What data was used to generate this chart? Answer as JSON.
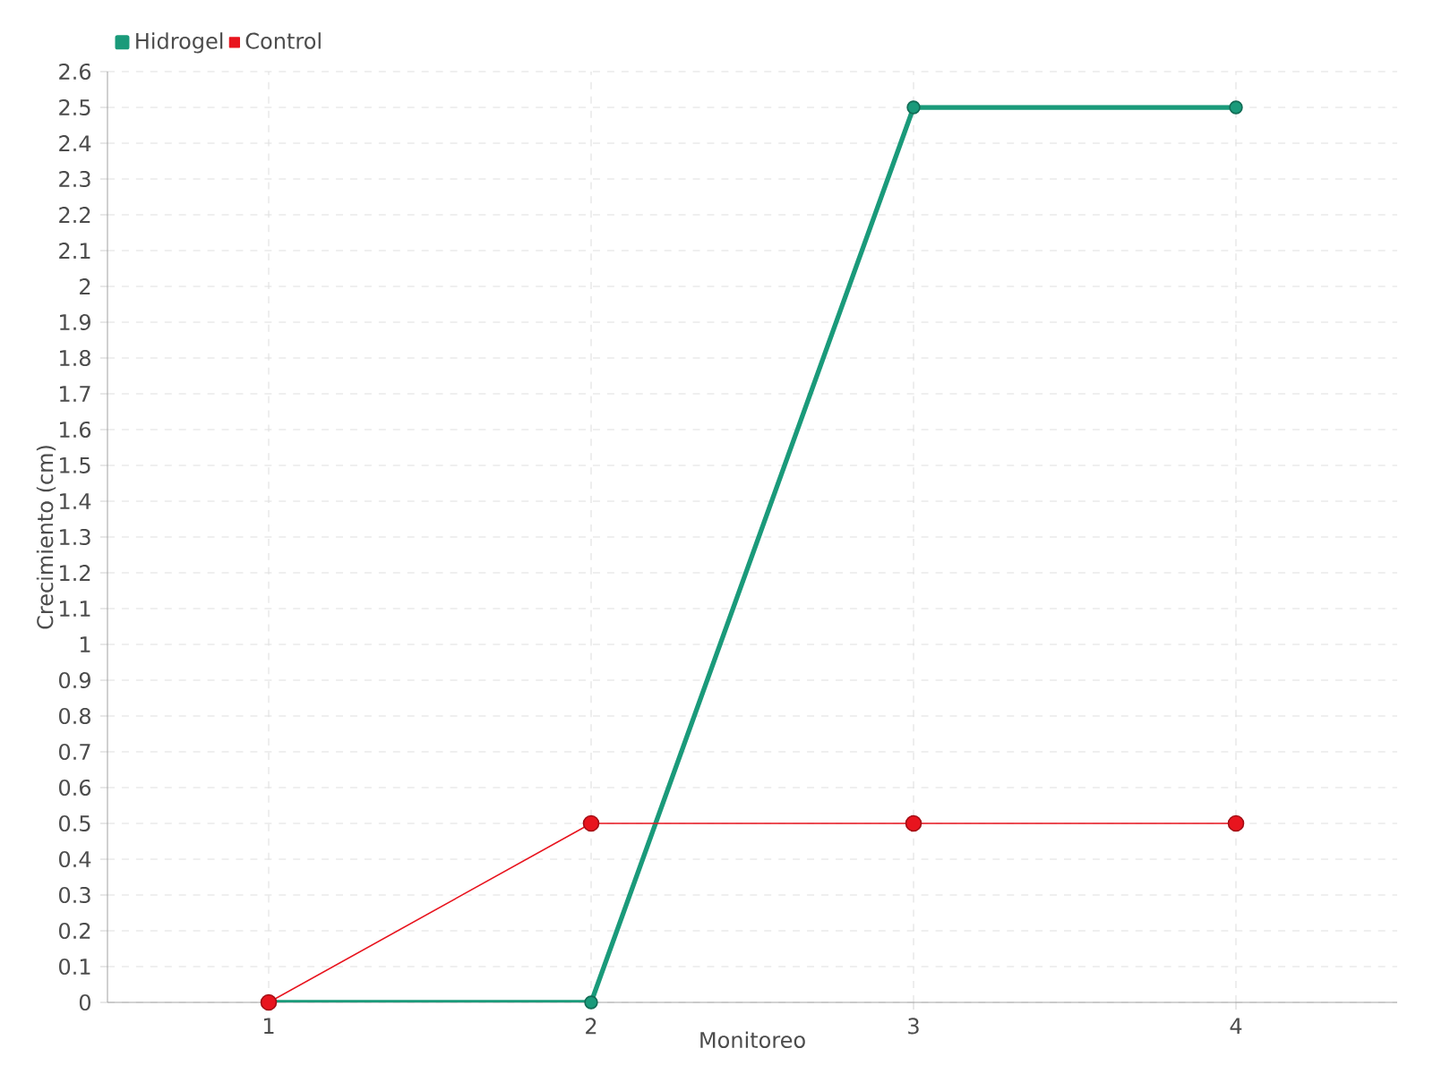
{
  "chart_data": {
    "type": "line",
    "xlabel": "Monitoreo",
    "ylabel": "Crecimiento (cm)",
    "categories": [
      "1",
      "2",
      "3",
      "4"
    ],
    "series": [
      {
        "name": "Hidrogel",
        "color": "#1a9a7a",
        "values": [
          0,
          0,
          2.5,
          2.5
        ]
      },
      {
        "name": "Control",
        "color": "#e8141e",
        "values": [
          0,
          0.5,
          0.5,
          0.5
        ]
      }
    ],
    "ylim": [
      0,
      2.6
    ],
    "yticks": [
      0,
      0.1,
      0.2,
      0.3,
      0.4,
      0.5,
      0.6,
      0.7,
      0.8,
      0.9,
      1,
      1.1,
      1.2,
      1.3,
      1.4,
      1.5,
      1.6,
      1.7,
      1.8,
      1.9,
      2,
      2.1,
      2.2,
      2.3,
      2.4,
      2.5,
      2.6
    ],
    "grid": true,
    "legend": "top left",
    "marker": "circle",
    "line_style": "solid"
  }
}
